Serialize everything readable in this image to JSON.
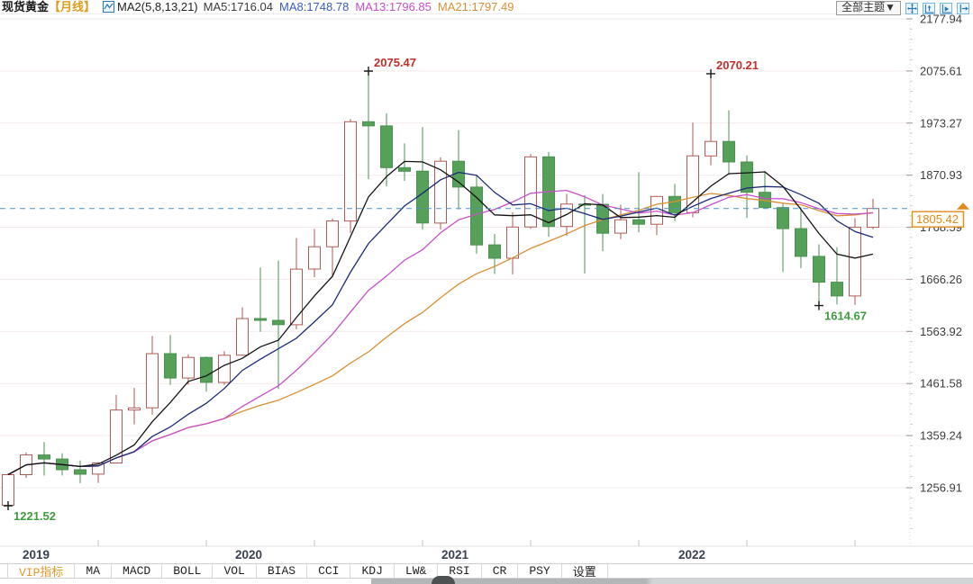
{
  "header": {
    "symbol": "现货黄金",
    "period": "【月线】",
    "ma_group_label": "MA2(5,8,13,21)",
    "ma_items": [
      {
        "label": "MA5:1716.04",
        "color": "#3a3a3a"
      },
      {
        "label": "MA8:1748.78",
        "color": "#3b5bc0"
      },
      {
        "label": "MA13:1796.85",
        "color": "#c94fc9"
      },
      {
        "label": "MA21:1797.49",
        "color": "#d98f33"
      }
    ],
    "theme_dropdown": "全部主题▼"
  },
  "toolbar": {
    "tabs": [
      "VIP指标",
      "MA",
      "MACD",
      "BOLL",
      "VOL",
      "BIAS",
      "CCI",
      "KDJ",
      "LW&",
      "RSI",
      "CR",
      "PSY",
      "设置"
    ],
    "active_tab": "VIP指标"
  },
  "chart_data": {
    "type": "candlestick",
    "title": "现货黄金 月线",
    "y_axis_labels": [
      "2177.94",
      "2075.61",
      "1973.27",
      "1870.93",
      "1768.59",
      "1666.26",
      "1563.92",
      "1461.58",
      "1359.24",
      "1256.91"
    ],
    "x_axis_labels": [
      "2019",
      "2020",
      "2021",
      "2022"
    ],
    "current_price": "1805.42",
    "legend_position": "top-left",
    "grid": "faint-horizontal",
    "annotations": [
      {
        "text": "2075.47",
        "month": "2020-08",
        "price": 2075.47,
        "type": "high",
        "color": "#c03028"
      },
      {
        "text": "2070.21",
        "month": "2022-03",
        "price": 2070.21,
        "type": "high",
        "color": "#c03028"
      },
      {
        "text": "1221.52",
        "month": "2018-12",
        "price": 1221.52,
        "type": "low",
        "color": "#3f9c3f"
      },
      {
        "text": "1614.67",
        "month": "2022-09",
        "price": 1614.67,
        "type": "low",
        "color": "#3f9c3f"
      }
    ],
    "ma_series": [
      {
        "name": "MA5",
        "window": 5,
        "value": 1716.04,
        "color": "#141414"
      },
      {
        "name": "MA8",
        "window": 8,
        "value": 1748.78,
        "color": "#1b2a78"
      },
      {
        "name": "MA13",
        "window": 13,
        "value": 1796.85,
        "color": "#c94fc9"
      },
      {
        "name": "MA21",
        "window": 21,
        "value": 1797.49,
        "color": "#d98f33"
      }
    ],
    "colors": {
      "up_stroke": "#ad5a55",
      "up_fill": "#ffffff",
      "down_stroke": "#4b9150",
      "down_fill": "#57a05a",
      "current_price_line": "#4f93c8",
      "price_tag": "#e08a1e"
    },
    "candles": [
      {
        "t": "2018-12",
        "o": 1222.3,
        "h": 1284.7,
        "l": 1221.52,
        "c": 1282.5
      },
      {
        "t": "2019-01",
        "o": 1282.5,
        "h": 1326.3,
        "l": 1276.2,
        "c": 1321.2
      },
      {
        "t": "2019-02",
        "o": 1321.2,
        "h": 1346.8,
        "l": 1280.7,
        "c": 1313.3
      },
      {
        "t": "2019-03",
        "o": 1313.3,
        "h": 1324.4,
        "l": 1280.9,
        "c": 1292.3
      },
      {
        "t": "2019-04",
        "o": 1292.3,
        "h": 1310.4,
        "l": 1265.9,
        "c": 1283.5
      },
      {
        "t": "2019-05",
        "o": 1283.5,
        "h": 1307.5,
        "l": 1266.3,
        "c": 1305.5
      },
      {
        "t": "2019-06",
        "o": 1305.5,
        "h": 1439.1,
        "l": 1305.0,
        "c": 1409.5
      },
      {
        "t": "2019-07",
        "o": 1409.5,
        "h": 1452.9,
        "l": 1381.6,
        "c": 1413.8
      },
      {
        "t": "2019-08",
        "o": 1413.8,
        "h": 1555.0,
        "l": 1400.3,
        "c": 1520.3
      },
      {
        "t": "2019-09",
        "o": 1520.3,
        "h": 1557.1,
        "l": 1458.9,
        "c": 1472.4
      },
      {
        "t": "2019-10",
        "o": 1472.4,
        "h": 1518.9,
        "l": 1459.2,
        "c": 1512.9
      },
      {
        "t": "2019-11",
        "o": 1512.9,
        "h": 1514.9,
        "l": 1445.5,
        "c": 1463.9
      },
      {
        "t": "2019-12",
        "o": 1463.9,
        "h": 1525.2,
        "l": 1458.7,
        "c": 1517.2
      },
      {
        "t": "2020-01",
        "o": 1517.2,
        "h": 1611.4,
        "l": 1516.1,
        "c": 1589.2
      },
      {
        "t": "2020-02",
        "o": 1589.2,
        "h": 1689.3,
        "l": 1563.2,
        "c": 1585.7
      },
      {
        "t": "2020-03",
        "o": 1585.7,
        "h": 1703.2,
        "l": 1451.1,
        "c": 1577.2
      },
      {
        "t": "2020-04",
        "o": 1577.2,
        "h": 1747.4,
        "l": 1568.2,
        "c": 1686.4
      },
      {
        "t": "2020-05",
        "o": 1686.4,
        "h": 1765.3,
        "l": 1670.5,
        "c": 1730.3
      },
      {
        "t": "2020-06",
        "o": 1730.3,
        "h": 1785.8,
        "l": 1670.6,
        "c": 1780.9
      },
      {
        "t": "2020-07",
        "o": 1780.9,
        "h": 1981.1,
        "l": 1757.0,
        "c": 1975.9
      },
      {
        "t": "2020-08",
        "o": 1975.9,
        "h": 2075.47,
        "l": 1862.9,
        "c": 1967.8
      },
      {
        "t": "2020-09",
        "o": 1967.8,
        "h": 1992.4,
        "l": 1848.8,
        "c": 1885.8
      },
      {
        "t": "2020-10",
        "o": 1885.8,
        "h": 1933.2,
        "l": 1859.8,
        "c": 1878.8
      },
      {
        "t": "2020-11",
        "o": 1878.8,
        "h": 1965.5,
        "l": 1764.3,
        "c": 1776.9
      },
      {
        "t": "2020-12",
        "o": 1776.9,
        "h": 1906.2,
        "l": 1764.5,
        "c": 1898.3
      },
      {
        "t": "2021-01",
        "o": 1898.3,
        "h": 1959.0,
        "l": 1803.6,
        "c": 1847.6
      },
      {
        "t": "2021-02",
        "o": 1847.6,
        "h": 1871.3,
        "l": 1716.8,
        "c": 1734.0
      },
      {
        "t": "2021-03",
        "o": 1734.0,
        "h": 1755.5,
        "l": 1676.9,
        "c": 1707.7
      },
      {
        "t": "2021-04",
        "o": 1707.7,
        "h": 1797.8,
        "l": 1676.1,
        "c": 1769.1
      },
      {
        "t": "2021-05",
        "o": 1769.1,
        "h": 1912.5,
        "l": 1765.3,
        "c": 1906.9
      },
      {
        "t": "2021-06",
        "o": 1906.9,
        "h": 1916.4,
        "l": 1750.0,
        "c": 1770.1
      },
      {
        "t": "2021-07",
        "o": 1770.1,
        "h": 1834.1,
        "l": 1752.1,
        "c": 1814.2
      },
      {
        "t": "2021-08",
        "o": 1814.2,
        "h": 1831.6,
        "l": 1677.9,
        "c": 1813.6
      },
      {
        "t": "2021-09",
        "o": 1813.6,
        "h": 1834.0,
        "l": 1721.7,
        "c": 1756.9
      },
      {
        "t": "2021-10",
        "o": 1756.9,
        "h": 1813.0,
        "l": 1745.4,
        "c": 1783.3
      },
      {
        "t": "2021-11",
        "o": 1783.3,
        "h": 1877.1,
        "l": 1758.8,
        "c": 1774.5
      },
      {
        "t": "2021-12",
        "o": 1774.5,
        "h": 1830.1,
        "l": 1753.3,
        "c": 1829.2
      },
      {
        "t": "2022-01",
        "o": 1829.2,
        "h": 1853.9,
        "l": 1780.6,
        "c": 1797.2
      },
      {
        "t": "2022-02",
        "o": 1797.2,
        "h": 1974.3,
        "l": 1788.2,
        "c": 1908.8
      },
      {
        "t": "2022-03",
        "o": 1908.8,
        "h": 2070.21,
        "l": 1890.2,
        "c": 1937.2
      },
      {
        "t": "2022-04",
        "o": 1937.2,
        "h": 1998.4,
        "l": 1871.8,
        "c": 1896.9
      },
      {
        "t": "2022-05",
        "o": 1896.9,
        "h": 1909.8,
        "l": 1786.9,
        "c": 1837.3
      },
      {
        "t": "2022-06",
        "o": 1837.3,
        "h": 1879.4,
        "l": 1805.2,
        "c": 1807.3
      },
      {
        "t": "2022-07",
        "o": 1807.3,
        "h": 1814.8,
        "l": 1680.9,
        "c": 1765.9
      },
      {
        "t": "2022-08",
        "o": 1765.9,
        "h": 1807.9,
        "l": 1688.5,
        "c": 1711.4
      },
      {
        "t": "2022-09",
        "o": 1711.4,
        "h": 1735.1,
        "l": 1614.67,
        "c": 1660.6
      },
      {
        "t": "2022-10",
        "o": 1660.6,
        "h": 1729.5,
        "l": 1617.0,
        "c": 1633.6
      },
      {
        "t": "2022-11",
        "o": 1633.6,
        "h": 1786.5,
        "l": 1616.0,
        "c": 1768.5
      },
      {
        "t": "2022-12",
        "o": 1768.5,
        "h": 1824.5,
        "l": 1765.0,
        "c": 1805.42
      }
    ]
  }
}
